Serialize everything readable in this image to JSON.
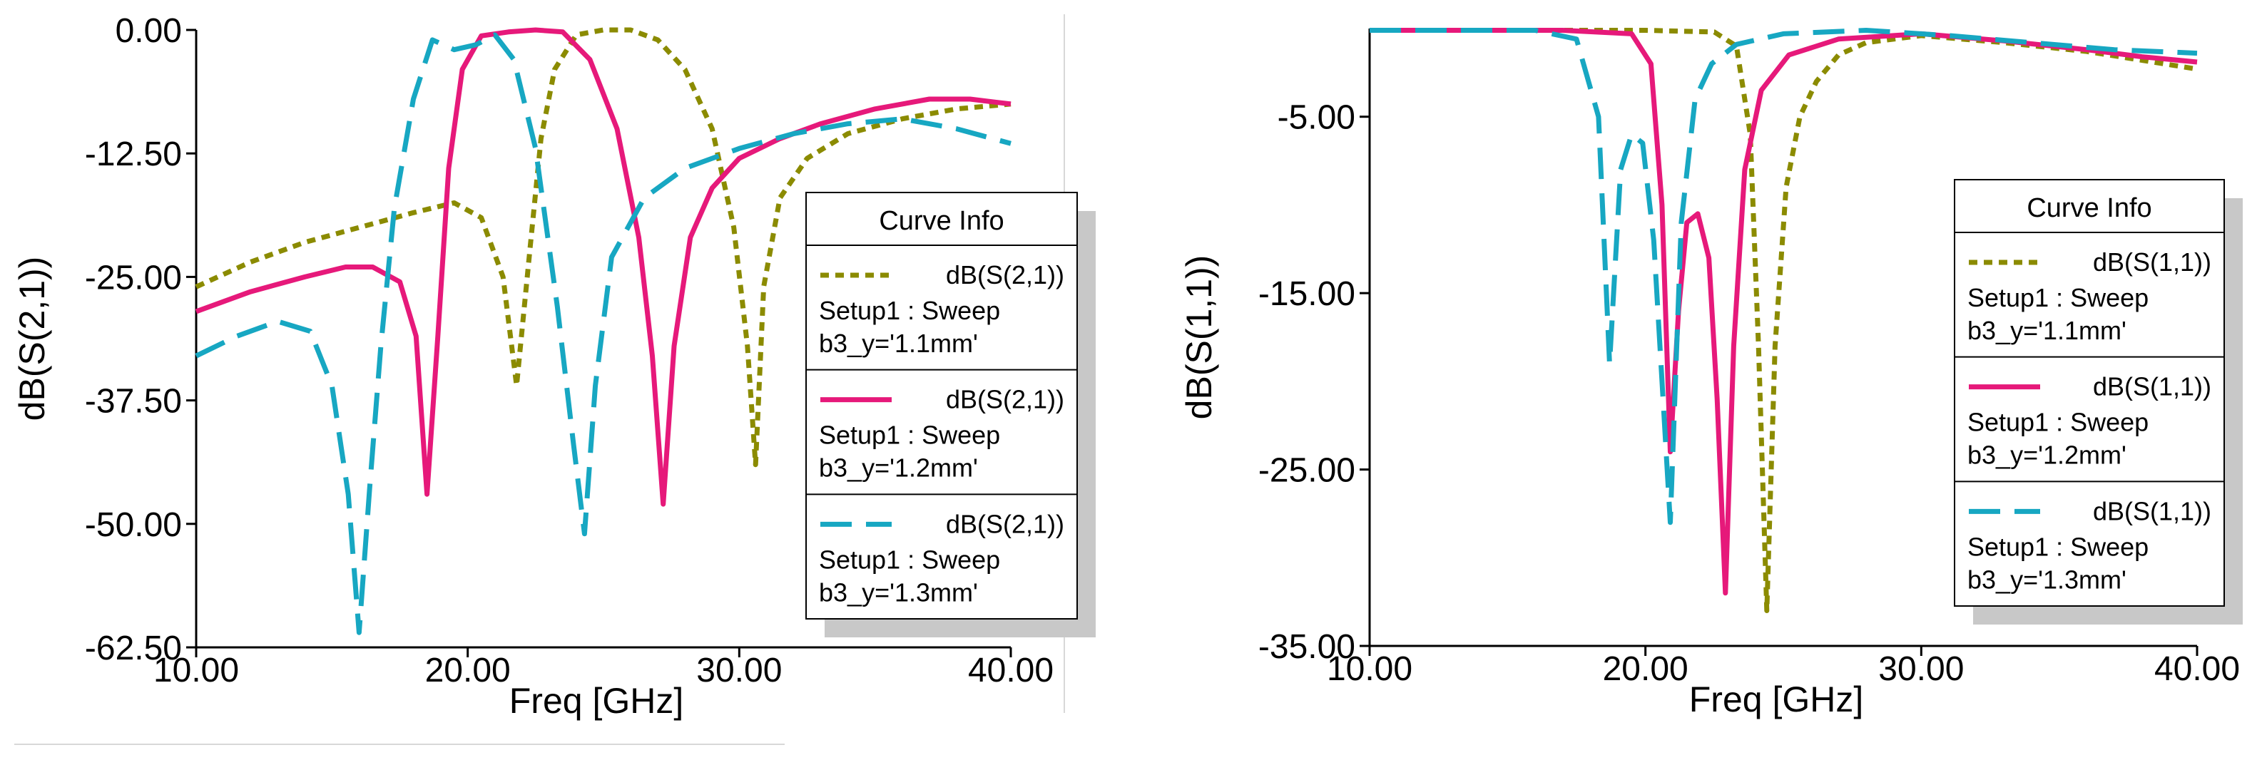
{
  "chart_data": [
    {
      "type": "line",
      "xlabel": "Freq [GHz]",
      "ylabel": "dB(S(2,1))",
      "xlim": [
        10,
        40
      ],
      "ylim": [
        -62.5,
        0
      ],
      "xticks": [
        10,
        20,
        30,
        40
      ],
      "xtick_labels": [
        "10.00",
        "20.00",
        "30.00",
        "40.00"
      ],
      "yticks": [
        0,
        -12.5,
        -25,
        -37.5,
        -50,
        -62.5
      ],
      "ytick_labels": [
        "0.00",
        "-12.50",
        "-25.00",
        "-37.50",
        "-50.00",
        "-62.50"
      ],
      "legend_title": "Curve Info",
      "legend_position": "right",
      "series": [
        {
          "name": "dB(S(2,1))",
          "setup": "Setup1 : Sweep",
          "param": "b3_y='1.1mm'",
          "color": "#8b8b00",
          "dash": "dotted",
          "x": [
            10,
            12,
            14,
            16,
            18,
            19.5,
            20.5,
            21.3,
            21.8,
            22.3,
            22.7,
            23.2,
            24,
            25,
            26,
            27,
            28,
            29,
            29.8,
            30.3,
            30.6,
            30.9,
            31.5,
            32.5,
            34,
            36,
            38,
            40
          ],
          "y": [
            -26,
            -23.5,
            -21.5,
            -20,
            -18.5,
            -17.5,
            -19,
            -25,
            -36,
            -22,
            -11,
            -4,
            -0.5,
            0,
            0,
            -1,
            -4,
            -10,
            -20,
            -32,
            -44,
            -26,
            -17,
            -13,
            -10.5,
            -9,
            -8,
            -7.5
          ]
        },
        {
          "name": "dB(S(2,1))",
          "setup": "Setup1 : Sweep",
          "param": "b3_y='1.2mm'",
          "color": "#e6197a",
          "dash": "solid",
          "x": [
            10,
            12,
            14,
            15.5,
            16.5,
            17.5,
            18.1,
            18.5,
            18.9,
            19.3,
            19.8,
            20.5,
            21.5,
            22.5,
            23.5,
            24.5,
            25.5,
            26.3,
            26.8,
            27.2,
            27.6,
            28.2,
            29,
            30,
            31.5,
            33,
            35,
            37,
            38.5,
            40
          ],
          "y": [
            -28.5,
            -26.5,
            -25,
            -24,
            -24,
            -25.5,
            -31,
            -47,
            -31,
            -14,
            -4,
            -0.6,
            -0.2,
            0,
            -0.2,
            -3,
            -10,
            -21,
            -33,
            -48,
            -32,
            -21,
            -16,
            -13,
            -11,
            -9.5,
            -8,
            -7,
            -7,
            -7.5
          ]
        },
        {
          "name": "dB(S(2,1))",
          "setup": "Setup1 : Sweep",
          "param": "b3_y='1.3mm'",
          "color": "#17a7c2",
          "dash": "dashed",
          "x": [
            10,
            11.5,
            13,
            14.2,
            15,
            15.6,
            16,
            16.4,
            16.8,
            17.3,
            18,
            18.7,
            19.5,
            20.3,
            21,
            21.7,
            22.5,
            23.3,
            23.9,
            24.3,
            24.7,
            25.3,
            26.5,
            28,
            30,
            32,
            34,
            36,
            38,
            40
          ],
          "y": [
            -33,
            -31,
            -29.5,
            -30.5,
            -36,
            -47,
            -61,
            -46,
            -32,
            -18,
            -7,
            -1,
            -2,
            -1.5,
            -0.5,
            -3,
            -12,
            -28,
            -42,
            -51,
            -36,
            -23,
            -17,
            -14,
            -12,
            -10.5,
            -9.5,
            -9,
            -10,
            -11.5
          ]
        }
      ]
    },
    {
      "type": "line",
      "xlabel": "Freq [GHz]",
      "ylabel": "dB(S(1,1))",
      "xlim": [
        10,
        40
      ],
      "ylim": [
        -35,
        0
      ],
      "xticks": [
        10,
        20,
        30,
        40
      ],
      "xtick_labels": [
        "10.00",
        "20.00",
        "30.00",
        "40.00"
      ],
      "yticks": [
        -5,
        -15,
        -25,
        -35
      ],
      "ytick_labels": [
        "-5.00",
        "-15.00",
        "-25.00",
        "-35.00"
      ],
      "legend_title": "Curve Info",
      "legend_position": "right",
      "series": [
        {
          "name": "dB(S(1,1))",
          "setup": "Setup1 : Sweep",
          "param": "b3_y='1.1mm'",
          "color": "#8b8b00",
          "dash": "dotted",
          "x": [
            10,
            15,
            20,
            22.5,
            23.3,
            23.8,
            24.1,
            24.4,
            24.7,
            25.1,
            25.6,
            26.2,
            27,
            28,
            30,
            33,
            36,
            38,
            40
          ],
          "y": [
            -0.1,
            -0.1,
            -0.1,
            -0.2,
            -1,
            -6,
            -18,
            -33,
            -18,
            -9,
            -5,
            -3,
            -1.5,
            -0.8,
            -0.4,
            -0.8,
            -1.3,
            -1.8,
            -2.3
          ]
        },
        {
          "name": "dB(S(1,1))",
          "setup": "Setup1 : Sweep",
          "param": "b3_y='1.2mm'",
          "color": "#e6197a",
          "dash": "solid",
          "x": [
            10,
            17,
            19.5,
            20.2,
            20.6,
            20.9,
            21.2,
            21.5,
            21.9,
            22.3,
            22.6,
            22.9,
            23.2,
            23.6,
            24.2,
            25.2,
            27,
            30,
            33,
            36,
            38,
            40
          ],
          "y": [
            -0.1,
            -0.1,
            -0.3,
            -2,
            -10,
            -24,
            -16,
            -11,
            -10.5,
            -13,
            -21,
            -32,
            -18,
            -8,
            -3.5,
            -1.5,
            -0.6,
            -0.3,
            -0.7,
            -1.2,
            -1.6,
            -1.9
          ]
        },
        {
          "name": "dB(S(1,1))",
          "setup": "Setup1 : Sweep",
          "param": "b3_y='1.3mm'",
          "color": "#17a7c2",
          "dash": "dashed",
          "x": [
            10,
            16,
            17.5,
            18.3,
            18.7,
            19.1,
            19.5,
            19.9,
            20.3,
            20.6,
            20.9,
            21.3,
            21.8,
            22.4,
            23.3,
            25,
            28,
            31,
            34,
            37,
            40
          ],
          "y": [
            -0.1,
            -0.1,
            -0.6,
            -5,
            -19,
            -8,
            -6,
            -6.5,
            -12,
            -20,
            -28,
            -11,
            -4,
            -2,
            -0.9,
            -0.3,
            -0.1,
            -0.4,
            -0.8,
            -1.2,
            -1.4
          ]
        }
      ]
    }
  ]
}
